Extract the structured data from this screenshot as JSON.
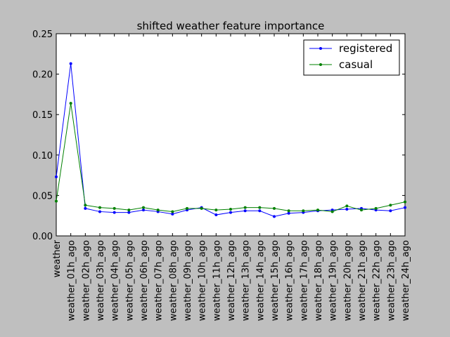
{
  "chart_data": {
    "type": "line",
    "title": "shifted weather feature importance",
    "xlabel": "",
    "ylabel": "",
    "ylim": [
      0,
      0.25
    ],
    "yticks": [
      "0.00",
      "0.05",
      "0.10",
      "0.15",
      "0.20",
      "0.25"
    ],
    "grid": false,
    "legend_position": "top-right",
    "categories": [
      "weather",
      "weather_01h_ago",
      "weather_02h_ago",
      "weather_03h_ago",
      "weather_04h_ago",
      "weather_05h_ago",
      "weather_06h_ago",
      "weather_07h_ago",
      "weather_08h_ago",
      "weather_09h_ago",
      "weather_10h_ago",
      "weather_11h_ago",
      "weather_12h_ago",
      "weather_13h_ago",
      "weather_14h_ago",
      "weather_15h_ago",
      "weather_16h_ago",
      "weather_17h_ago",
      "weather_18h_ago",
      "weather_19h_ago",
      "weather_20h_ago",
      "weather_21h_ago",
      "weather_22h_ago",
      "weather_23h_ago",
      "weather_24h_ago"
    ],
    "series": [
      {
        "name": "registered",
        "color": "#0000ff",
        "values": [
          0.073,
          0.213,
          0.034,
          0.03,
          0.029,
          0.029,
          0.032,
          0.03,
          0.027,
          0.032,
          0.035,
          0.026,
          0.029,
          0.031,
          0.031,
          0.024,
          0.028,
          0.029,
          0.031,
          0.032,
          0.033,
          0.034,
          0.032,
          0.031,
          0.035
        ]
      },
      {
        "name": "casual",
        "color": "#008000",
        "values": [
          0.043,
          0.164,
          0.038,
          0.035,
          0.034,
          0.032,
          0.035,
          0.032,
          0.03,
          0.034,
          0.034,
          0.032,
          0.033,
          0.035,
          0.035,
          0.034,
          0.031,
          0.031,
          0.032,
          0.03,
          0.037,
          0.032,
          0.034,
          0.038,
          0.042
        ]
      }
    ]
  }
}
